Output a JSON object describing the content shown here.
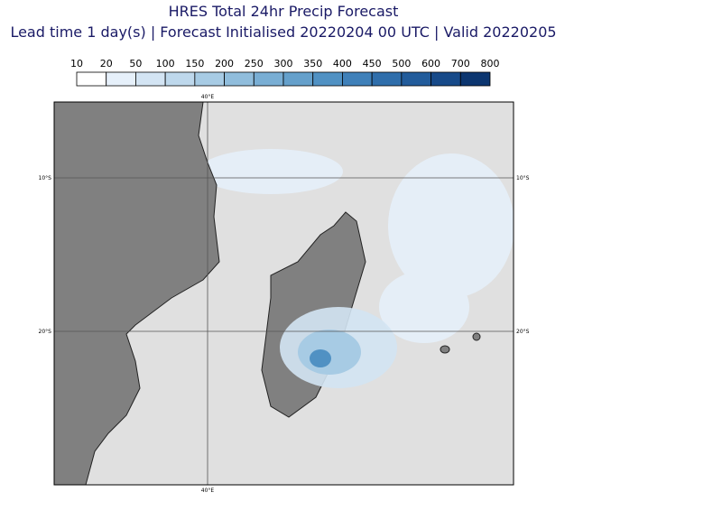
{
  "header": {
    "title": "HRES Total 24hr Precip Forecast",
    "subtitle": "Lead time 1 day(s) | Forecast Initialised 20220204 00 UTC | Valid 20220205"
  },
  "legend": {
    "levels": [
      10,
      20,
      50,
      100,
      150,
      200,
      250,
      300,
      350,
      400,
      450,
      500,
      600,
      700,
      800
    ],
    "colors": [
      "#ffffff",
      "#e6f0fa",
      "#d3e4f3",
      "#bed8ec",
      "#a7cbe4",
      "#90bddc",
      "#79aed4",
      "#65a0cb",
      "#5091c3",
      "#3f80b9",
      "#2f6eab",
      "#225c9b",
      "#174a89",
      "#0c3670"
    ]
  },
  "grid_labels": {
    "lon": "40°E",
    "lat": [
      "10°S",
      "20°S"
    ]
  }
}
